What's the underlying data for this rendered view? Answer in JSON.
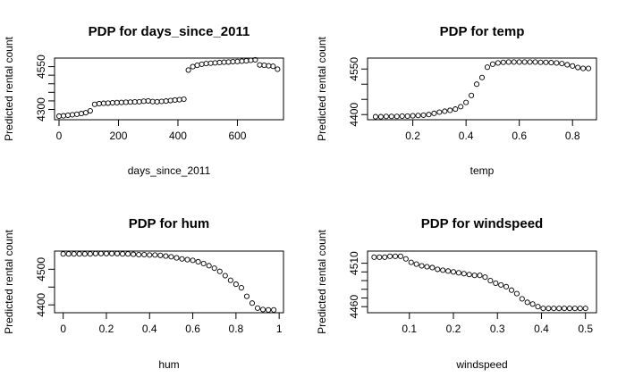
{
  "chart_data": [
    {
      "type": "scatter",
      "title": "PDP for days_since_2011",
      "xlabel": "days_since_2011",
      "ylabel": "Predicted rental count",
      "xlim": [
        -15,
        755
      ],
      "ylim": [
        4240,
        4600
      ],
      "xticks": [
        0,
        200,
        400,
        600
      ],
      "yticks": [
        4300,
        4550
      ],
      "yticks_minor": [
        4350,
        4400,
        4450,
        4500
      ],
      "x": [
        0,
        15,
        30,
        45,
        60,
        75,
        90,
        105,
        120,
        135,
        150,
        165,
        180,
        195,
        210,
        225,
        240,
        255,
        270,
        285,
        300,
        315,
        330,
        345,
        360,
        375,
        390,
        405,
        420,
        435,
        450,
        465,
        480,
        495,
        510,
        525,
        540,
        555,
        570,
        585,
        600,
        615,
        630,
        645,
        660,
        675,
        690,
        705,
        720,
        735
      ],
      "y": [
        4261,
        4263,
        4266,
        4269,
        4272,
        4276,
        4281,
        4292,
        4330,
        4334,
        4336,
        4337,
        4339,
        4340,
        4341,
        4342,
        4343,
        4344,
        4345,
        4348,
        4350,
        4346,
        4345,
        4347,
        4349,
        4352,
        4355,
        4357,
        4360,
        4530,
        4550,
        4558,
        4564,
        4568,
        4570,
        4572,
        4574,
        4576,
        4577,
        4579,
        4580,
        4582,
        4584,
        4587,
        4590,
        4560,
        4558,
        4555,
        4552,
        4535
      ]
    },
    {
      "type": "scatter",
      "title": "PDP for temp",
      "xlabel": "temp",
      "ylabel": "Predicted rental count",
      "xlim": [
        0.03,
        0.89
      ],
      "ylim": [
        4383,
        4586
      ],
      "xticks": [
        0.2,
        0.4,
        0.6,
        0.8
      ],
      "yticks": [
        4400,
        4550
      ],
      "yticks_minor": [
        4450,
        4500
      ],
      "x": [
        0.06,
        0.08,
        0.1,
        0.12,
        0.14,
        0.16,
        0.18,
        0.2,
        0.22,
        0.24,
        0.26,
        0.28,
        0.3,
        0.32,
        0.34,
        0.36,
        0.38,
        0.4,
        0.42,
        0.44,
        0.46,
        0.48,
        0.5,
        0.52,
        0.54,
        0.56,
        0.58,
        0.6,
        0.62,
        0.64,
        0.66,
        0.68,
        0.7,
        0.72,
        0.74,
        0.76,
        0.78,
        0.8,
        0.82,
        0.84,
        0.86
      ],
      "y": [
        4393,
        4393,
        4394,
        4394,
        4394,
        4395,
        4395,
        4396,
        4397,
        4398,
        4400,
        4404,
        4408,
        4411,
        4414,
        4418,
        4426,
        4440,
        4463,
        4500,
        4522,
        4556,
        4566,
        4570,
        4572,
        4573,
        4573,
        4573,
        4573,
        4573,
        4573,
        4572,
        4572,
        4571,
        4570,
        4568,
        4564,
        4560,
        4555,
        4552,
        4552
      ]
    },
    {
      "type": "scatter",
      "title": "PDP for hum",
      "xlabel": "hum",
      "ylabel": "Predicted rental count",
      "xlim": [
        -0.04,
        1.02
      ],
      "ylim": [
        4378,
        4551
      ],
      "xticks": [
        0.0,
        0.2,
        0.4,
        0.6,
        0.8,
        1.0
      ],
      "yticks": [
        4400,
        4500
      ],
      "yticks_minor": [
        4450
      ],
      "x": [
        0.0,
        0.025,
        0.05,
        0.075,
        0.1,
        0.125,
        0.15,
        0.175,
        0.2,
        0.225,
        0.25,
        0.275,
        0.3,
        0.325,
        0.35,
        0.375,
        0.4,
        0.425,
        0.45,
        0.475,
        0.5,
        0.525,
        0.55,
        0.575,
        0.6,
        0.625,
        0.65,
        0.675,
        0.7,
        0.725,
        0.75,
        0.775,
        0.8,
        0.825,
        0.85,
        0.875,
        0.9,
        0.925,
        0.95,
        0.975
      ],
      "y": [
        4543,
        4543,
        4543,
        4543,
        4543,
        4543,
        4544,
        4544,
        4544,
        4544,
        4544,
        4543,
        4543,
        4542,
        4541,
        4541,
        4540,
        4540,
        4539,
        4537,
        4535,
        4532,
        4529,
        4527,
        4525,
        4521,
        4516,
        4510,
        4503,
        4494,
        4482,
        4469,
        4458,
        4448,
        4424,
        4405,
        4391,
        4387,
        4386,
        4386
      ]
    },
    {
      "type": "scatter",
      "title": "PDP for windspeed",
      "xlabel": "windspeed",
      "ylabel": "Predicted rental count",
      "xlim": [
        0.005,
        0.525
      ],
      "ylim": [
        4453,
        4524
      ],
      "xticks": [
        0.1,
        0.2,
        0.3,
        0.4,
        0.5
      ],
      "yticks": [
        4460,
        4510
      ],
      "yticks_minor": [
        4470,
        4480,
        4490,
        4500
      ],
      "x": [
        0.02,
        0.032,
        0.044,
        0.056,
        0.068,
        0.08,
        0.092,
        0.104,
        0.116,
        0.128,
        0.14,
        0.152,
        0.164,
        0.176,
        0.188,
        0.2,
        0.212,
        0.224,
        0.236,
        0.248,
        0.26,
        0.272,
        0.284,
        0.296,
        0.308,
        0.32,
        0.332,
        0.344,
        0.356,
        0.368,
        0.38,
        0.392,
        0.404,
        0.416,
        0.428,
        0.44,
        0.452,
        0.464,
        0.476,
        0.488,
        0.5
      ],
      "y": [
        4517,
        4517,
        4517,
        4518,
        4518,
        4518,
        4515,
        4511,
        4509,
        4507,
        4506,
        4505,
        4503,
        4502,
        4501,
        4500,
        4499,
        4498,
        4497,
        4496,
        4496,
        4494,
        4490,
        4487,
        4485,
        4483,
        4479,
        4475,
        4469,
        4465,
        4463,
        4460,
        4458,
        4458,
        4458,
        4458,
        4458,
        4458,
        4458,
        4458,
        4458
      ]
    }
  ]
}
